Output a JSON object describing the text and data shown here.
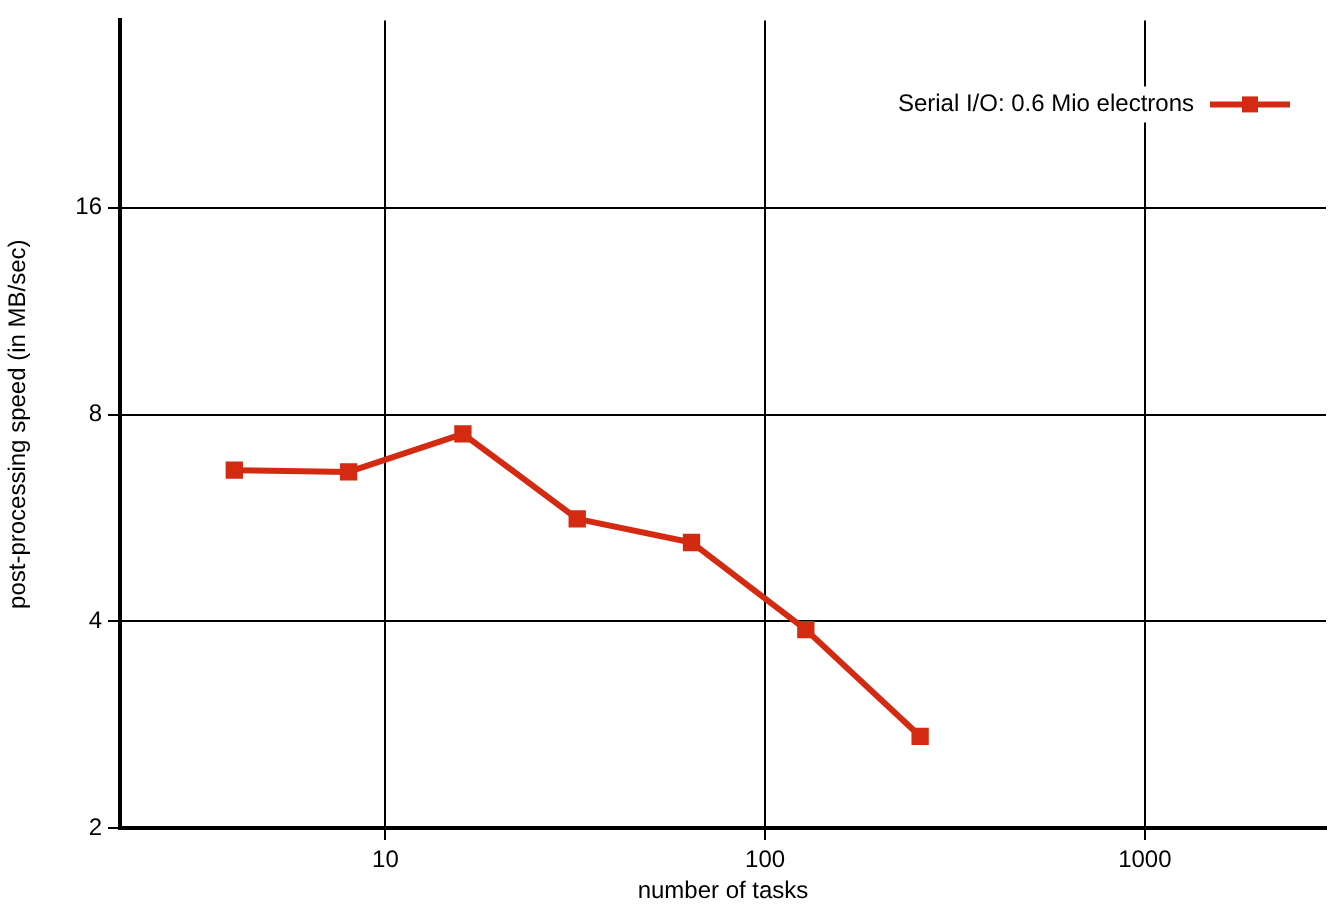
{
  "chart_data": {
    "type": "line",
    "xlabel": "number of tasks",
    "ylabel": "post-processing speed (in MB/sec)",
    "x": [
      4,
      8,
      16,
      32,
      64,
      128,
      256
    ],
    "series": [
      {
        "name": "Serial I/O: 0.6 Mio electrons",
        "color": "#d42a12",
        "values": [
          6.64,
          6.6,
          7.5,
          5.64,
          5.21,
          3.89,
          2.72
        ]
      }
    ],
    "log": "xy",
    "xlim": [
      2,
      3000
    ],
    "ylim": [
      2,
      30
    ],
    "xticks": [
      10,
      100,
      1000
    ],
    "yticks": [
      2,
      4,
      8,
      16
    ],
    "grid": true,
    "legend": "top right",
    "marker": "square",
    "line_style": "solid"
  }
}
